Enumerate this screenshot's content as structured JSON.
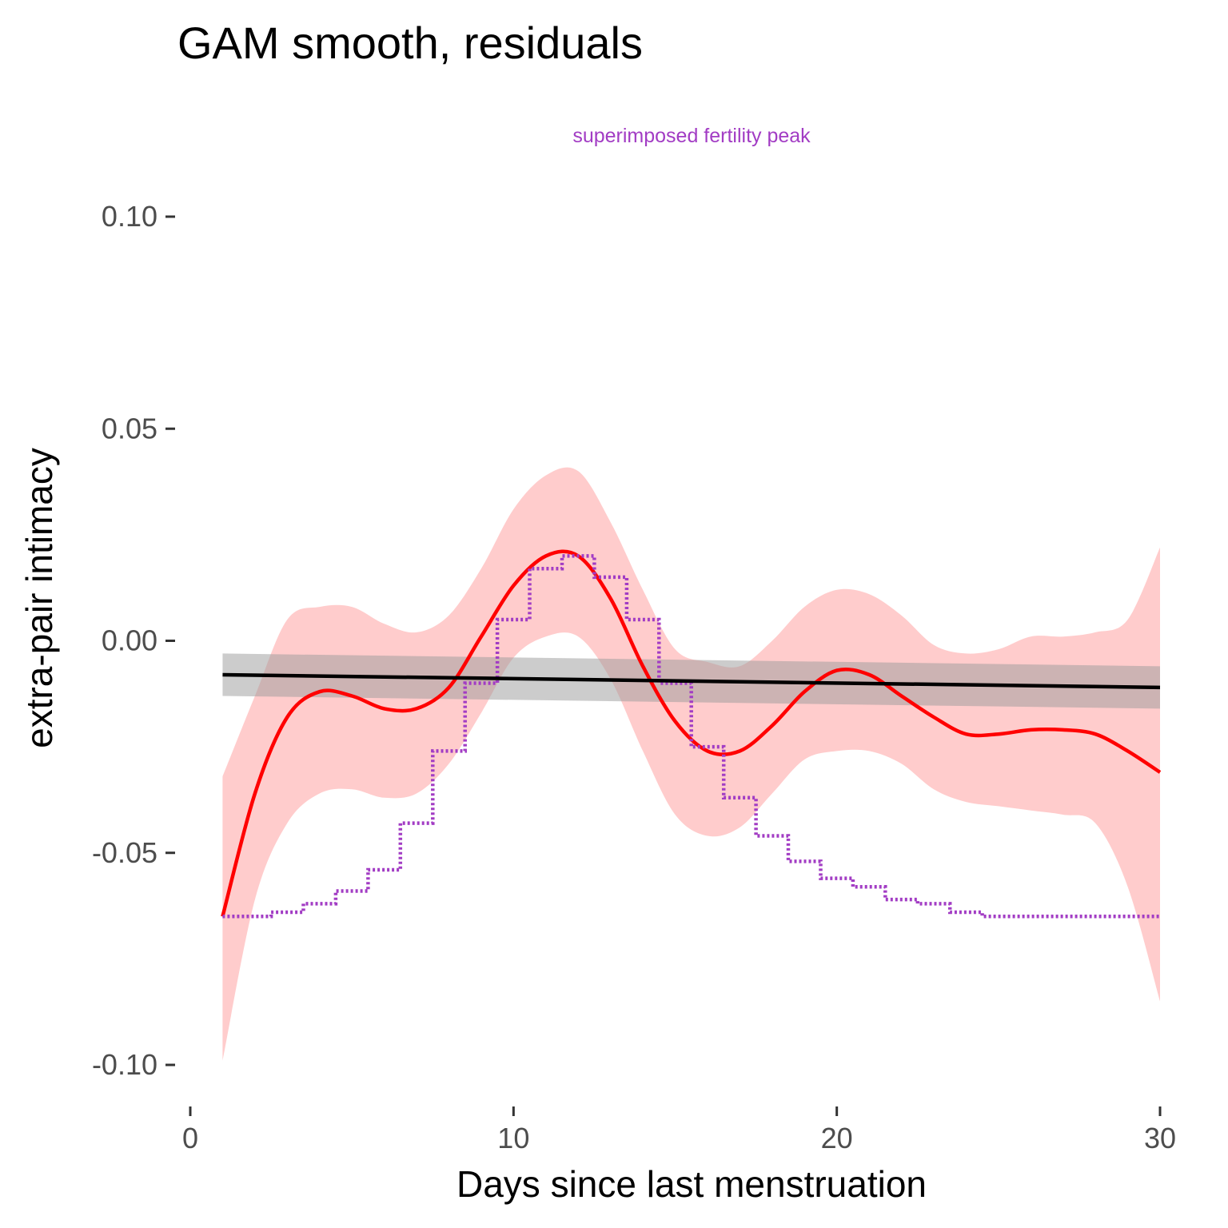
{
  "colors": {
    "smooth": "#ff0000",
    "smooth_band": "#ffcccc",
    "linear": "#000000",
    "linear_band": "#999999",
    "fertility": "#a23cc4",
    "tick_text": "#4d4d4d"
  },
  "chart_data": {
    "type": "line",
    "title": "GAM smooth, residuals",
    "annotation": "superimposed fertility peak",
    "xlabel": "Days since last menstruation",
    "ylabel": "extra-pair intimacy",
    "xlim": [
      0,
      30
    ],
    "ylim": [
      -0.1,
      0.1
    ],
    "xticks": [
      0,
      10,
      20,
      30
    ],
    "xtick_labels": [
      "0",
      "10",
      "20",
      "30"
    ],
    "yticks": [
      -0.1,
      -0.05,
      0,
      0.05,
      0.1
    ],
    "ytick_labels": [
      "-0.10",
      "-0.05",
      "0.00",
      "0.05",
      "0.10"
    ],
    "grid": false,
    "series": [
      {
        "key": "gam_smooth",
        "style": "solid",
        "x": [
          1,
          2,
          3,
          4,
          5,
          6,
          7,
          8,
          9,
          10,
          11,
          12,
          13,
          14,
          15,
          16,
          17,
          18,
          19,
          20,
          21,
          22,
          23,
          24,
          25,
          26,
          27,
          28,
          29,
          30
        ],
        "y": [
          -0.065,
          -0.036,
          -0.018,
          -0.012,
          -0.013,
          -0.016,
          -0.016,
          -0.011,
          0.001,
          0.013,
          0.02,
          0.02,
          0.01,
          -0.006,
          -0.019,
          -0.026,
          -0.026,
          -0.02,
          -0.012,
          -0.007,
          -0.008,
          -0.013,
          -0.018,
          -0.022,
          -0.022,
          -0.021,
          -0.021,
          -0.022,
          -0.026,
          -0.031
        ],
        "lower": [
          -0.099,
          -0.061,
          -0.043,
          -0.036,
          -0.035,
          -0.037,
          -0.036,
          -0.029,
          -0.017,
          -0.004,
          0.001,
          0.001,
          -0.009,
          -0.026,
          -0.041,
          -0.046,
          -0.044,
          -0.036,
          -0.028,
          -0.026,
          -0.026,
          -0.029,
          -0.035,
          -0.038,
          -0.039,
          -0.04,
          -0.041,
          -0.043,
          -0.058,
          -0.085
        ],
        "upper": [
          -0.032,
          -0.013,
          0.005,
          0.008,
          0.008,
          0.004,
          0.002,
          0.006,
          0.017,
          0.031,
          0.039,
          0.04,
          0.028,
          0.012,
          -0.002,
          -0.005,
          -0.006,
          0.0,
          0.008,
          0.012,
          0.011,
          0.006,
          -0.001,
          -0.003,
          -0.002,
          0.001,
          0.001,
          0.002,
          0.005,
          0.022
        ]
      },
      {
        "key": "linear_fit",
        "style": "solid",
        "x": [
          1,
          30
        ],
        "y": [
          -0.008,
          -0.011
        ],
        "lower": [
          -0.013,
          -0.016
        ],
        "upper": [
          -0.003,
          -0.006
        ]
      },
      {
        "key": "fertility_peak",
        "style": "dotted-step",
        "x": [
          1,
          2,
          3,
          4,
          5,
          6,
          7,
          8,
          9,
          10,
          11,
          12,
          13,
          14,
          15,
          16,
          17,
          18,
          19,
          20,
          21,
          22,
          23,
          24,
          25,
          26,
          27,
          28,
          29,
          30
        ],
        "y": [
          -0.065,
          -0.065,
          -0.064,
          -0.062,
          -0.059,
          -0.054,
          -0.043,
          -0.026,
          -0.01,
          0.005,
          0.017,
          0.02,
          0.015,
          0.005,
          -0.01,
          -0.025,
          -0.037,
          -0.046,
          -0.052,
          -0.056,
          -0.058,
          -0.061,
          -0.062,
          -0.064,
          -0.065,
          -0.065,
          -0.065,
          -0.065,
          -0.065,
          -0.065
        ]
      }
    ]
  }
}
